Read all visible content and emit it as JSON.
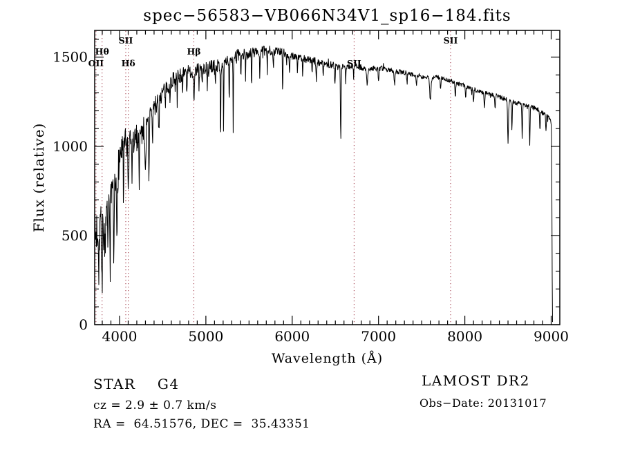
{
  "annotations": {
    "class_line": "STAR    G4",
    "cz_line": "cz = 2.9 ± 0.7 km/s",
    "radec_line": "RA =  64.51576, DEC =  35.43351",
    "survey": "LAMOST DR2",
    "obs_date": "Obs−Date: 20131017"
  },
  "chart_data": {
    "type": "line",
    "title": "spec−56583−VB066N34V1_sp16−184.fits",
    "xlabel": "Wavelength (Å)",
    "ylabel": "Flux (relative)",
    "xlim": [
      3712,
      9100
    ],
    "ylim": [
      0,
      1650
    ],
    "xticks": [
      4000,
      5000,
      6000,
      7000,
      8000,
      9000
    ],
    "yticks": [
      0,
      500,
      1000,
      1500
    ],
    "minor_x_step": 100,
    "minor_y_step": 100,
    "grid": false,
    "line_color": "#000000",
    "marker_line_color": "#9b2b3b",
    "spectral_lines": [
      {
        "label": "OII",
        "wavelength": 3727,
        "row": 2
      },
      {
        "label": "Hθ",
        "wavelength": 3798,
        "row": 1
      },
      {
        "label": "SII",
        "wavelength": 4072,
        "row": 0
      },
      {
        "label": "Hδ",
        "wavelength": 4102,
        "row": 2
      },
      {
        "label": "Hβ",
        "wavelength": 4861,
        "row": 1
      },
      {
        "label": "SII",
        "wavelength": 6717,
        "row": 2
      },
      {
        "label": "SII",
        "wavelength": 7835,
        "row": 0
      }
    ],
    "continuum_points": [
      [
        3712,
        450
      ],
      [
        3740,
        540
      ],
      [
        3780,
        565
      ],
      [
        3820,
        525
      ],
      [
        3860,
        565
      ],
      [
        3900,
        645
      ],
      [
        3930,
        720
      ],
      [
        3960,
        765
      ],
      [
        3990,
        905
      ],
      [
        4020,
        980
      ],
      [
        4060,
        1010
      ],
      [
        4100,
        1000
      ],
      [
        4150,
        1010
      ],
      [
        4200,
        1050
      ],
      [
        4260,
        1080
      ],
      [
        4320,
        1130
      ],
      [
        4380,
        1200
      ],
      [
        4440,
        1250
      ],
      [
        4500,
        1300
      ],
      [
        4560,
        1345
      ],
      [
        4620,
        1375
      ],
      [
        4680,
        1395
      ],
      [
        4740,
        1405
      ],
      [
        4800,
        1415
      ],
      [
        4860,
        1425
      ],
      [
        4920,
        1435
      ],
      [
        4980,
        1435
      ],
      [
        5040,
        1445
      ],
      [
        5100,
        1455
      ],
      [
        5160,
        1450
      ],
      [
        5220,
        1465
      ],
      [
        5280,
        1490
      ],
      [
        5340,
        1505
      ],
      [
        5400,
        1515
      ],
      [
        5460,
        1515
      ],
      [
        5520,
        1525
      ],
      [
        5580,
        1530
      ],
      [
        5640,
        1530
      ],
      [
        5700,
        1535
      ],
      [
        5760,
        1540
      ],
      [
        5820,
        1535
      ],
      [
        5880,
        1525
      ],
      [
        5940,
        1515
      ],
      [
        6000,
        1510
      ],
      [
        6080,
        1500
      ],
      [
        6160,
        1490
      ],
      [
        6240,
        1480
      ],
      [
        6320,
        1470
      ],
      [
        6400,
        1462
      ],
      [
        6480,
        1455
      ],
      [
        6560,
        1448
      ],
      [
        6640,
        1445
      ],
      [
        6720,
        1450
      ],
      [
        6800,
        1442
      ],
      [
        6880,
        1435
      ],
      [
        6960,
        1440
      ],
      [
        7040,
        1435
      ],
      [
        7120,
        1428
      ],
      [
        7200,
        1422
      ],
      [
        7280,
        1415
      ],
      [
        7360,
        1408
      ],
      [
        7440,
        1400
      ],
      [
        7520,
        1390
      ],
      [
        7600,
        1378
      ],
      [
        7680,
        1388
      ],
      [
        7760,
        1380
      ],
      [
        7840,
        1365
      ],
      [
        7920,
        1350
      ],
      [
        8000,
        1340
      ],
      [
        8080,
        1322
      ],
      [
        8160,
        1310
      ],
      [
        8240,
        1300
      ],
      [
        8320,
        1290
      ],
      [
        8400,
        1278
      ],
      [
        8480,
        1262
      ],
      [
        8560,
        1250
      ],
      [
        8640,
        1240
      ],
      [
        8720,
        1232
      ],
      [
        8800,
        1218
      ],
      [
        8880,
        1195
      ],
      [
        8950,
        1170
      ],
      [
        8990,
        1150
      ],
      [
        9002,
        1120
      ],
      [
        9006,
        1000
      ],
      [
        9010,
        500
      ],
      [
        9013,
        150
      ],
      [
        9016,
        12
      ]
    ],
    "noise_envelope": [
      [
        3712,
        165
      ],
      [
        3800,
        155
      ],
      [
        3900,
        135
      ],
      [
        4000,
        110
      ],
      [
        4100,
        88
      ],
      [
        4200,
        78
      ],
      [
        4300,
        68
      ],
      [
        4450,
        56
      ],
      [
        4600,
        48
      ],
      [
        4800,
        42
      ],
      [
        5000,
        37
      ],
      [
        5200,
        35
      ],
      [
        5400,
        33
      ],
      [
        5600,
        31
      ],
      [
        5800,
        29
      ],
      [
        6000,
        25
      ],
      [
        6300,
        21
      ],
      [
        6600,
        18
      ],
      [
        7000,
        15
      ],
      [
        7500,
        13
      ],
      [
        8000,
        12
      ],
      [
        8500,
        13
      ],
      [
        8950,
        14
      ],
      [
        9000,
        10
      ],
      [
        9016,
        4
      ]
    ],
    "absorption_features": [
      [
        3760,
        220,
        3
      ],
      [
        3798,
        430,
        3
      ],
      [
        3835,
        250,
        3
      ],
      [
        3889,
        200,
        3
      ],
      [
        3934,
        400,
        4
      ],
      [
        3969,
        320,
        4
      ],
      [
        4046,
        360,
        3
      ],
      [
        4102,
        310,
        4
      ],
      [
        4144,
        180,
        3
      ],
      [
        4227,
        260,
        3
      ],
      [
        4300,
        200,
        6
      ],
      [
        4341,
        300,
        4
      ],
      [
        4383,
        220,
        3
      ],
      [
        4455,
        190,
        3
      ],
      [
        4531,
        160,
        3
      ],
      [
        4584,
        140,
        3
      ],
      [
        4668,
        160,
        3
      ],
      [
        4730,
        130,
        3
      ],
      [
        4780,
        140,
        3
      ],
      [
        4861,
        170,
        5
      ],
      [
        4921,
        130,
        3
      ],
      [
        4957,
        110,
        3
      ],
      [
        5016,
        160,
        3
      ],
      [
        5110,
        130,
        3
      ],
      [
        5170,
        500,
        2.5
      ],
      [
        5205,
        430,
        2.5
      ],
      [
        5270,
        240,
        3
      ],
      [
        5316,
        400,
        2.5
      ],
      [
        5406,
        170,
        3
      ],
      [
        5460,
        130,
        3
      ],
      [
        5530,
        220,
        2.5
      ],
      [
        5625,
        160,
        3
      ],
      [
        5711,
        120,
        3
      ],
      [
        5782,
        110,
        3
      ],
      [
        5890,
        230,
        3
      ],
      [
        5970,
        120,
        3
      ],
      [
        6060,
        90,
        3
      ],
      [
        6122,
        100,
        3
      ],
      [
        6230,
        80,
        3
      ],
      [
        6280,
        100,
        4
      ],
      [
        6360,
        80,
        3
      ],
      [
        6495,
        110,
        4
      ],
      [
        6563,
        410,
        4
      ],
      [
        6620,
        90,
        3
      ],
      [
        6710,
        80,
        3
      ],
      [
        6868,
        100,
        6
      ],
      [
        7000,
        70,
        4
      ],
      [
        7186,
        80,
        5
      ],
      [
        7330,
        60,
        4
      ],
      [
        7440,
        70,
        4
      ],
      [
        7600,
        120,
        7
      ],
      [
        7720,
        70,
        4
      ],
      [
        7890,
        80,
        4
      ],
      [
        8010,
        60,
        4
      ],
      [
        8100,
        70,
        4
      ],
      [
        8227,
        100,
        4
      ],
      [
        8350,
        80,
        4
      ],
      [
        8500,
        240,
        5
      ],
      [
        8545,
        160,
        4
      ],
      [
        8665,
        190,
        4
      ],
      [
        8752,
        220,
        4
      ],
      [
        8870,
        100,
        4
      ],
      [
        8940,
        80,
        4
      ]
    ],
    "seed": 7
  }
}
